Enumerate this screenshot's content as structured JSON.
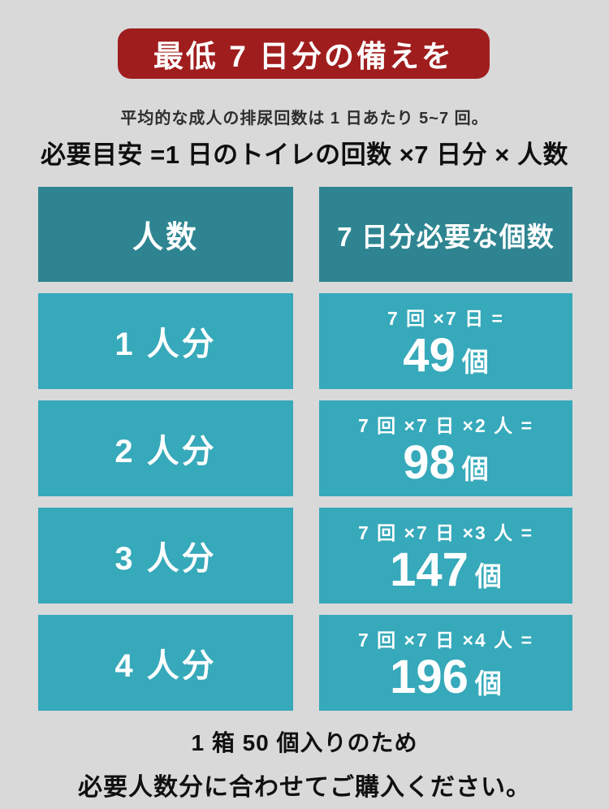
{
  "colors": {
    "page_background": "#d9d9da",
    "banner_background": "#a01d1d",
    "table_header": "#2e8591",
    "table_row": "#36a9ba",
    "text_dark": "#0f0f0f",
    "text_white": "#ffffff"
  },
  "banner": {
    "title": "最低 7 日分の備えを"
  },
  "intro": {
    "subtitle": "平均的な成人の排尿回数は 1 日あたり 5~7 回。",
    "formula": "必要目安 =1 日のトイレの回数 ×7 日分 × 人数"
  },
  "table": {
    "columns": {
      "people": "人数",
      "quantity": "7 日分必要な個数"
    },
    "rows": [
      {
        "people": "1 人分",
        "calc": "7 回 ×7 日 =",
        "count": "49",
        "unit": "個"
      },
      {
        "people": "2 人分",
        "calc": "7 回 ×7 日 ×2 人 =",
        "count": "98",
        "unit": "個"
      },
      {
        "people": "3 人分",
        "calc": "7 回 ×7 日 ×3 人 =",
        "count": "147",
        "unit": "個"
      },
      {
        "people": "4 人分",
        "calc": "7 回 ×7 日 ×4 人 =",
        "count": "196",
        "unit": "個"
      }
    ]
  },
  "footer": {
    "line1": "1 箱 50 個入りのため",
    "line2": "必要人数分に合わせてご購入ください。"
  }
}
